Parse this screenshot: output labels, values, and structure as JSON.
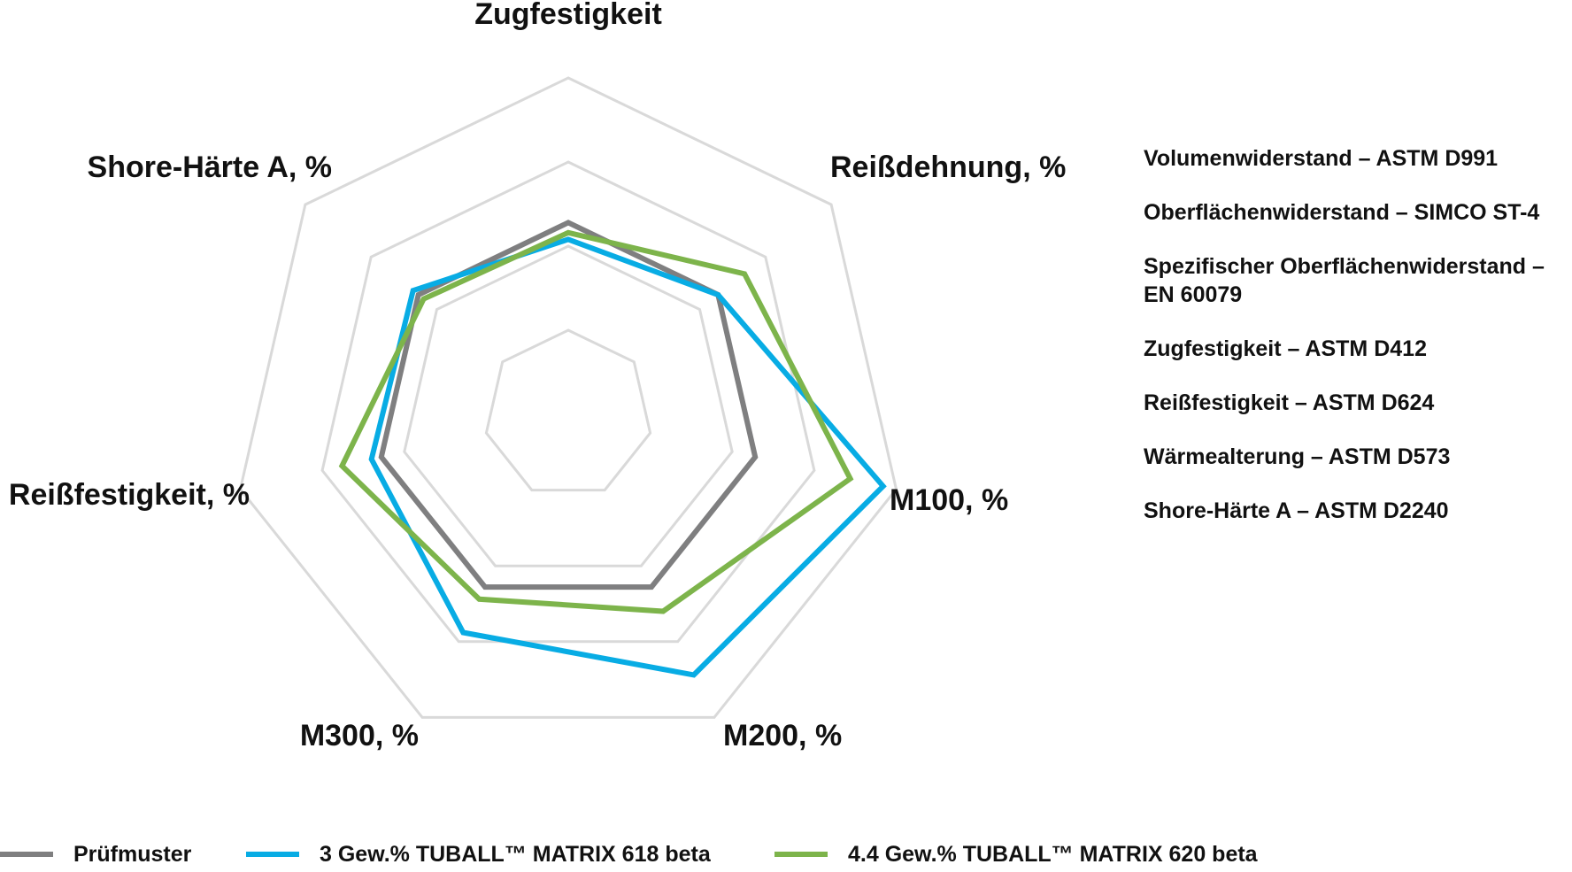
{
  "chart_data": {
    "type": "radar",
    "axes": [
      "Zugfestigkeit",
      "Reißdehnung, %",
      "M100, %",
      "M200, %",
      "M300, %",
      "Reißfestigkeit, %",
      "Shore-Härte A, %"
    ],
    "rings": 4,
    "grid": true,
    "legend_position": "bottom",
    "series": [
      {
        "name": "Prüfmuster",
        "color": "#7f7f80",
        "values": [
          0.57,
          0.57,
          0.57,
          0.57,
          0.57,
          0.57,
          0.57
        ]
      },
      {
        "name": "3 Gew.% TUBALL™ MATRIX 618 beta",
        "color": "#08ace4",
        "values": [
          0.52,
          0.57,
          0.96,
          0.86,
          0.72,
          0.6,
          0.59
        ]
      },
      {
        "name": "4.4 Gew.% TUBALL™ MATRIX 620 beta",
        "color": "#7db44b",
        "values": [
          0.54,
          0.67,
          0.86,
          0.65,
          0.61,
          0.69,
          0.55
        ]
      }
    ]
  },
  "notes": [
    "Volumenwiderstand – ASTM D991",
    "Oberflächenwiderstand – SIMCO ST-4",
    "Spezifischer Oberflächenwiderstand – EN 60079",
    "Zugfestigkeit – ASTM D412",
    "Reißfestigkeit – ASTM D624",
    "Wärmealterung – ASTM D573",
    "Shore-Härte A – ASTM D2240"
  ],
  "legend": {
    "items": [
      {
        "label": "Prüfmuster",
        "color": "#7f7f80"
      },
      {
        "label": "3 Gew.% TUBALL™ MATRIX 618 beta",
        "color": "#08ace4"
      },
      {
        "label": "4.4 Gew.% TUBALL™ MATRIX 620 beta",
        "color": "#7db44b"
      }
    ]
  }
}
